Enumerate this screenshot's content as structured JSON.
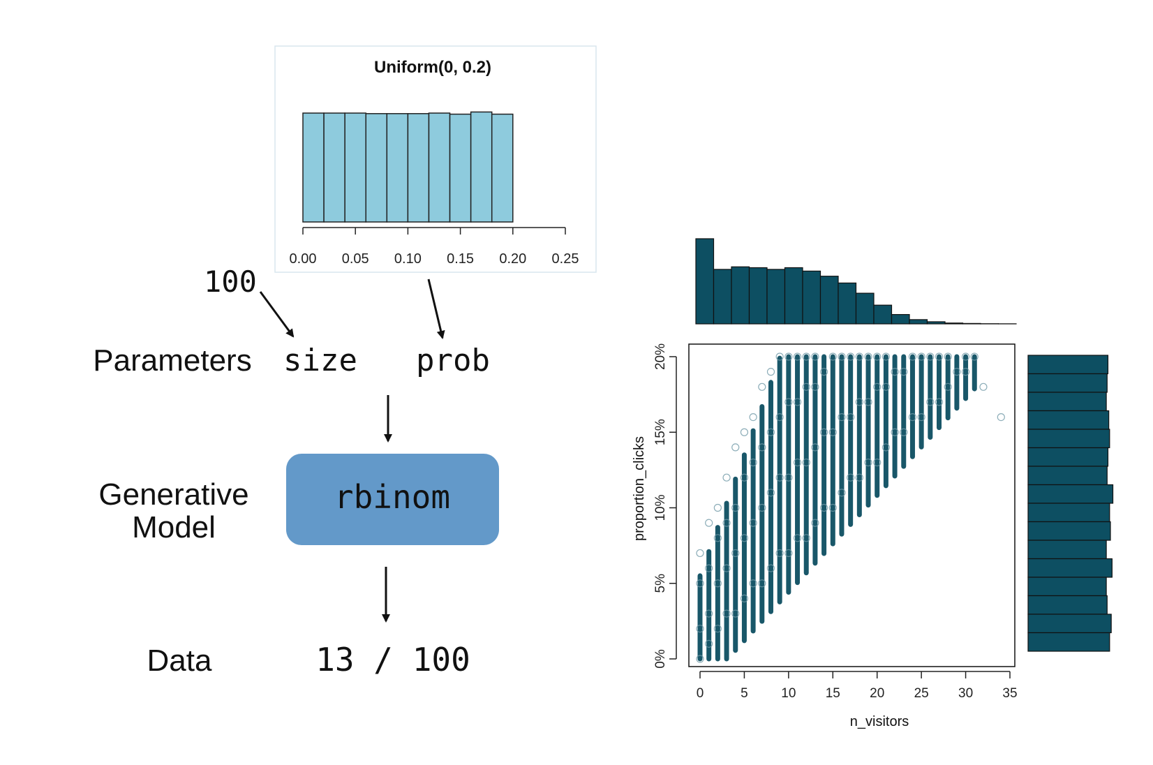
{
  "diagram": {
    "row_labels": {
      "parameters": "Parameters",
      "generative_line1": "Generative",
      "generative_line2": "Model",
      "data": "Data"
    },
    "size_value": "100",
    "param_size": "size",
    "param_prob": "prob",
    "model_name": "rbinom",
    "data_value": "13 / 100",
    "colors": {
      "model_box": "#6399c9",
      "prior_bar": "#8ecbdd",
      "posterior": "#0d4f62"
    }
  },
  "chart_data": [
    {
      "type": "bar",
      "title": "Uniform(0, 0.2)",
      "bin_edges": [
        0,
        0.02,
        0.04,
        0.06,
        0.08,
        0.1,
        0.12,
        0.14,
        0.16,
        0.18,
        0.2
      ],
      "values": [
        1.0,
        1.0,
        1.0,
        0.995,
        0.995,
        0.995,
        1.0,
        0.99,
        1.01,
        0.99
      ],
      "xlim": [
        0,
        0.25
      ],
      "ticks": [
        "0.00",
        "0.05",
        "0.10",
        "0.15",
        "0.20",
        "0.25"
      ],
      "xlabel": "",
      "ylabel": ""
    },
    {
      "type": "scatter",
      "xlabel": "n_visitors",
      "ylabel": "proportion_clicks",
      "xlim": [
        0,
        35
      ],
      "ylim": [
        0,
        0.2
      ],
      "x_ticks": [
        "0",
        "5",
        "10",
        "15",
        "20",
        "25",
        "30",
        "35"
      ],
      "y_ticks": [
        "0%",
        "5%",
        "10%",
        "15%",
        "20%"
      ],
      "point_style": "open-circle",
      "points": [
        [
          0,
          0.0
        ],
        [
          0,
          0.02
        ],
        [
          0,
          0.05
        ],
        [
          0,
          0.07
        ],
        [
          1,
          0.01
        ],
        [
          1,
          0.03
        ],
        [
          1,
          0.06
        ],
        [
          1,
          0.09
        ],
        [
          2,
          0.02
        ],
        [
          2,
          0.05
        ],
        [
          2,
          0.08
        ],
        [
          2,
          0.1
        ],
        [
          3,
          0.03
        ],
        [
          3,
          0.06
        ],
        [
          3,
          0.09
        ],
        [
          3,
          0.12
        ],
        [
          4,
          0.03
        ],
        [
          4,
          0.07
        ],
        [
          4,
          0.1
        ],
        [
          4,
          0.14
        ],
        [
          5,
          0.04
        ],
        [
          5,
          0.08
        ],
        [
          5,
          0.12
        ],
        [
          5,
          0.15
        ],
        [
          6,
          0.05
        ],
        [
          6,
          0.09
        ],
        [
          6,
          0.13
        ],
        [
          6,
          0.16
        ],
        [
          7,
          0.05
        ],
        [
          7,
          0.1
        ],
        [
          7,
          0.14
        ],
        [
          7,
          0.18
        ],
        [
          8,
          0.06
        ],
        [
          8,
          0.11
        ],
        [
          8,
          0.15
        ],
        [
          8,
          0.19
        ],
        [
          9,
          0.07
        ],
        [
          9,
          0.12
        ],
        [
          9,
          0.16
        ],
        [
          9,
          0.2
        ],
        [
          10,
          0.07
        ],
        [
          10,
          0.12
        ],
        [
          10,
          0.17
        ],
        [
          10,
          0.2
        ],
        [
          11,
          0.08
        ],
        [
          11,
          0.13
        ],
        [
          11,
          0.17
        ],
        [
          11,
          0.2
        ],
        [
          12,
          0.08
        ],
        [
          12,
          0.13
        ],
        [
          12,
          0.18
        ],
        [
          12,
          0.2
        ],
        [
          13,
          0.09
        ],
        [
          13,
          0.14
        ],
        [
          13,
          0.18
        ],
        [
          13,
          0.2
        ],
        [
          14,
          0.1
        ],
        [
          14,
          0.15
        ],
        [
          14,
          0.19
        ],
        [
          15,
          0.1
        ],
        [
          15,
          0.15
        ],
        [
          15,
          0.2
        ],
        [
          16,
          0.11
        ],
        [
          16,
          0.16
        ],
        [
          16,
          0.2
        ],
        [
          17,
          0.12
        ],
        [
          17,
          0.16
        ],
        [
          17,
          0.2
        ],
        [
          18,
          0.12
        ],
        [
          18,
          0.17
        ],
        [
          18,
          0.2
        ],
        [
          19,
          0.13
        ],
        [
          19,
          0.17
        ],
        [
          19,
          0.2
        ],
        [
          20,
          0.13
        ],
        [
          20,
          0.18
        ],
        [
          20,
          0.2
        ],
        [
          21,
          0.14
        ],
        [
          21,
          0.18
        ],
        [
          21,
          0.2
        ],
        [
          22,
          0.15
        ],
        [
          22,
          0.19
        ],
        [
          23,
          0.15
        ],
        [
          23,
          0.19
        ],
        [
          24,
          0.16
        ],
        [
          24,
          0.2
        ],
        [
          25,
          0.16
        ],
        [
          25,
          0.2
        ],
        [
          26,
          0.17
        ],
        [
          26,
          0.2
        ],
        [
          27,
          0.17
        ],
        [
          27,
          0.2
        ],
        [
          28,
          0.18
        ],
        [
          28,
          0.2
        ],
        [
          29,
          0.19
        ],
        [
          30,
          0.19
        ],
        [
          30,
          0.2
        ],
        [
          31,
          0.2
        ],
        [
          32,
          0.18
        ],
        [
          34,
          0.16
        ]
      ]
    },
    {
      "type": "bar",
      "orientation": "vertical",
      "values": [
        1.0,
        0.64,
        0.67,
        0.66,
        0.64,
        0.66,
        0.62,
        0.56,
        0.48,
        0.36,
        0.22,
        0.11,
        0.05,
        0.025,
        0.01,
        0.005,
        0.002,
        0.001
      ],
      "xlabel": "",
      "ylabel": ""
    },
    {
      "type": "bar",
      "orientation": "horizontal",
      "values": [
        0.97,
        0.96,
        0.95,
        0.98,
        0.99,
        0.97,
        0.96,
        1.03,
        0.99,
        1.0,
        0.95,
        1.02,
        0.95,
        0.96,
        1.01,
        0.99
      ],
      "xlabel": "",
      "ylabel": ""
    }
  ]
}
